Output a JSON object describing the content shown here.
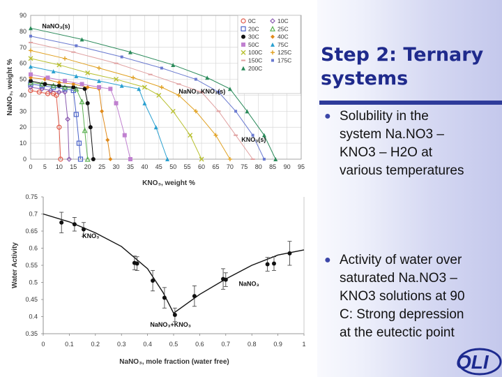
{
  "slide": {
    "title_line1": "Step 2: Ternary",
    "title_line2": "systems",
    "bullet1_lines": [
      "Solubility in the",
      "system Na.NO3 –",
      "KNO3 – H2O at",
      "various temperatures"
    ],
    "bullet2_lines": [
      "Activity of water over",
      "saturated Na.NO3 –",
      "KNO3 solutions at 90",
      "C: Strong depression",
      "at the eutectic point"
    ],
    "bullet_icon": "bullet-dot-icon",
    "logo_text": "OLI",
    "colors": {
      "title": "#1f2a8c",
      "rule": "#2e3b9a",
      "bullet": "#3b46a8"
    }
  },
  "chart_data": [
    {
      "type": "line",
      "title": "",
      "xlabel": "KNO₃, weight %",
      "ylabel": "NaNO₃, weight %",
      "xlim": [
        0,
        95
      ],
      "ylim": [
        0,
        90
      ],
      "xticks": [
        0,
        5,
        10,
        15,
        20,
        25,
        30,
        35,
        40,
        45,
        50,
        55,
        60,
        65,
        70,
        75,
        80,
        85,
        90,
        95
      ],
      "yticks": [
        0,
        10,
        20,
        30,
        40,
        50,
        60,
        70,
        80,
        90
      ],
      "grid": true,
      "legend_position": "top-right",
      "annotations": [
        {
          "text": "NaNO₃(s)",
          "x": 4,
          "y": 82
        },
        {
          "text": "NaNO₃.KNO₃(s)",
          "x": 52,
          "y": 41
        },
        {
          "text": "KNO₃(s)",
          "x": 74,
          "y": 11
        }
      ],
      "series": [
        {
          "name": "0C",
          "color": "#e05a4a",
          "marker": "circle-open",
          "points": [
            [
              0,
              43
            ],
            [
              3,
              42
            ],
            [
              6,
              41
            ],
            [
              8,
              41
            ],
            [
              9,
              40
            ],
            [
              10,
              20
            ],
            [
              10.5,
              0
            ]
          ]
        },
        {
          "name": "10C",
          "color": "#8a5ab0",
          "marker": "diamond-open",
          "points": [
            [
              0,
              45
            ],
            [
              4,
              44
            ],
            [
              7,
              43
            ],
            [
              10,
              42
            ],
            [
              12,
              42
            ],
            [
              13,
              25
            ],
            [
              13.5,
              0
            ]
          ]
        },
        {
          "name": "20C",
          "color": "#4a62c8",
          "marker": "square-open",
          "points": [
            [
              0,
              47
            ],
            [
              4,
              46
            ],
            [
              8,
              45
            ],
            [
              12,
              44
            ],
            [
              15,
              43
            ],
            [
              16,
              28
            ],
            [
              17,
              10
            ],
            [
              17.5,
              0
            ]
          ]
        },
        {
          "name": "25C",
          "color": "#5ab050",
          "marker": "triangle-open",
          "points": [
            [
              0,
              48
            ],
            [
              4,
              47
            ],
            [
              8,
              46
            ],
            [
              12,
              45
            ],
            [
              16,
              44
            ],
            [
              18,
              36
            ],
            [
              19,
              18
            ],
            [
              20,
              0
            ]
          ]
        },
        {
          "name": "30C",
          "color": "#111111",
          "marker": "circle",
          "points": [
            [
              0,
              49
            ],
            [
              5,
              47
            ],
            [
              10,
              46
            ],
            [
              15,
              45
            ],
            [
              19,
              44
            ],
            [
              20,
              35
            ],
            [
              21,
              20
            ],
            [
              22,
              0
            ]
          ]
        },
        {
          "name": "40C",
          "color": "#e08a1a",
          "marker": "diamond",
          "points": [
            [
              0,
              51
            ],
            [
              5,
              50
            ],
            [
              10,
              48
            ],
            [
              15,
              47
            ],
            [
              20,
              45
            ],
            [
              24,
              44
            ],
            [
              25,
              30
            ],
            [
              27,
              12
            ],
            [
              28,
              0
            ]
          ]
        },
        {
          "name": "50C",
          "color": "#c080d0",
          "marker": "square",
          "points": [
            [
              0,
              53
            ],
            [
              6,
              51
            ],
            [
              12,
              49
            ],
            [
              18,
              47
            ],
            [
              24,
              45
            ],
            [
              28,
              44
            ],
            [
              30,
              35
            ],
            [
              33,
              15
            ],
            [
              35,
              0
            ]
          ]
        },
        {
          "name": "75C",
          "color": "#2aa0d0",
          "marker": "triangle",
          "points": [
            [
              0,
              58
            ],
            [
              8,
              55
            ],
            [
              16,
              52
            ],
            [
              24,
              49
            ],
            [
              32,
              46
            ],
            [
              38,
              44
            ],
            [
              40,
              35
            ],
            [
              44,
              20
            ],
            [
              48,
              0
            ]
          ]
        },
        {
          "name": "100C",
          "color": "#b8c030",
          "marker": "cross",
          "points": [
            [
              0,
              63
            ],
            [
              10,
              59
            ],
            [
              20,
              54
            ],
            [
              30,
              50
            ],
            [
              40,
              45
            ],
            [
              45,
              40
            ],
            [
              50,
              30
            ],
            [
              56,
              15
            ],
            [
              60,
              0
            ]
          ]
        },
        {
          "name": "125C",
          "color": "#e0a020",
          "marker": "plus",
          "points": [
            [
              0,
              68
            ],
            [
              12,
              63
            ],
            [
              24,
              57
            ],
            [
              36,
              51
            ],
            [
              46,
              45
            ],
            [
              52,
              40
            ],
            [
              58,
              30
            ],
            [
              65,
              15
            ],
            [
              70,
              0
            ]
          ]
        },
        {
          "name": "150C",
          "color": "#e0a0a0",
          "marker": "dash",
          "points": [
            [
              0,
              73
            ],
            [
              15,
              67
            ],
            [
              30,
              60
            ],
            [
              42,
              53
            ],
            [
              52,
              47
            ],
            [
              60,
              42
            ],
            [
              66,
              30
            ],
            [
              72,
              15
            ],
            [
              78,
              0
            ]
          ]
        },
        {
          "name": "175C",
          "color": "#6a7ad0",
          "marker": "square-small",
          "points": [
            [
              0,
              77
            ],
            [
              16,
              71
            ],
            [
              32,
              64
            ],
            [
              46,
              57
            ],
            [
              58,
              50
            ],
            [
              66,
              42
            ],
            [
              72,
              30
            ],
            [
              78,
              15
            ],
            [
              82,
              0
            ]
          ]
        },
        {
          "name": "200C",
          "color": "#2a8a5a",
          "marker": "triangle",
          "points": [
            [
              0,
              82
            ],
            [
              18,
              75
            ],
            [
              35,
              67
            ],
            [
              50,
              59
            ],
            [
              62,
              51
            ],
            [
              70,
              44
            ],
            [
              76,
              30
            ],
            [
              82,
              15
            ],
            [
              86,
              0
            ]
          ]
        }
      ]
    },
    {
      "type": "scatter",
      "title": "",
      "xlabel": "NaNO₃, mole fraction (water free)",
      "ylabel": "Water Activity",
      "xlim": [
        0,
        1
      ],
      "ylim": [
        0.35,
        0.75
      ],
      "xticks": [
        0,
        0.1,
        0.2,
        0.3,
        0.4,
        0.5,
        0.6,
        0.7,
        0.8,
        0.9,
        1
      ],
      "yticks": [
        0.35,
        0.4,
        0.45,
        0.5,
        0.55,
        0.6,
        0.65,
        0.7,
        0.75
      ],
      "grid": false,
      "annotations": [
        {
          "text": "KNO₃",
          "x": 0.15,
          "y": 0.63
        },
        {
          "text": "NaNO₃",
          "x": 0.75,
          "y": 0.49
        },
        {
          "text": "NaNO₃+KNO₃",
          "x": 0.41,
          "y": 0.37
        }
      ],
      "curve": [
        [
          0,
          0.7
        ],
        [
          0.1,
          0.677
        ],
        [
          0.2,
          0.645
        ],
        [
          0.3,
          0.605
        ],
        [
          0.4,
          0.54
        ],
        [
          0.46,
          0.47
        ],
        [
          0.5,
          0.41
        ],
        [
          0.6,
          0.465
        ],
        [
          0.7,
          0.51
        ],
        [
          0.8,
          0.55
        ],
        [
          0.9,
          0.58
        ],
        [
          1,
          0.595
        ]
      ],
      "points": [
        {
          "x": 0.07,
          "y": 0.675,
          "err": 0.03
        },
        {
          "x": 0.12,
          "y": 0.67,
          "err": 0.02
        },
        {
          "x": 0.155,
          "y": 0.655,
          "err": 0.02
        },
        {
          "x": 0.35,
          "y": 0.557,
          "err": 0.02
        },
        {
          "x": 0.36,
          "y": 0.555,
          "err": 0.02
        },
        {
          "x": 0.42,
          "y": 0.505,
          "err": 0.03
        },
        {
          "x": 0.465,
          "y": 0.455,
          "err": 0.03
        },
        {
          "x": 0.505,
          "y": 0.405,
          "err": 0.02
        },
        {
          "x": 0.58,
          "y": 0.46,
          "err": 0.03
        },
        {
          "x": 0.69,
          "y": 0.51,
          "err": 0.03
        },
        {
          "x": 0.7,
          "y": 0.508,
          "err": 0.02
        },
        {
          "x": 0.86,
          "y": 0.553,
          "err": 0.02
        },
        {
          "x": 0.885,
          "y": 0.555,
          "err": 0.02
        },
        {
          "x": 0.945,
          "y": 0.585,
          "err": 0.035
        }
      ]
    }
  ]
}
